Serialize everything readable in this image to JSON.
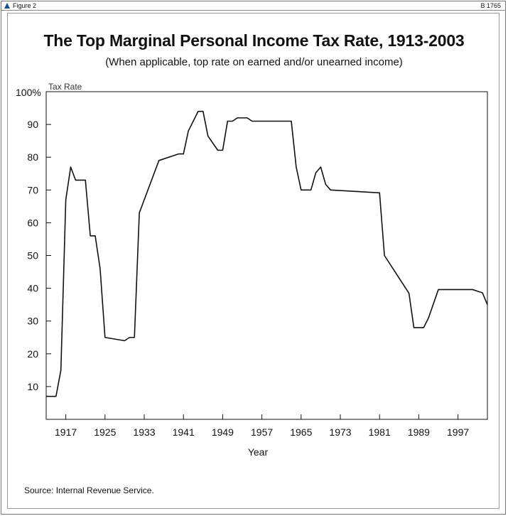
{
  "header": {
    "figure_label": "Figure 2",
    "code": "B 1765"
  },
  "chart_data": {
    "type": "line",
    "title": "The Top Marginal Personal Income Tax Rate, 1913-2003",
    "subtitle": "(When applicable, top rate on earned and/or unearned income)",
    "xlabel": "Year",
    "ylabel": "Tax Rate",
    "y_top_label": "100%",
    "xlim": [
      1913,
      2003
    ],
    "ylim": [
      0,
      100
    ],
    "x_ticks": [
      1917,
      1925,
      1933,
      1941,
      1949,
      1957,
      1965,
      1973,
      1981,
      1989,
      1997
    ],
    "y_ticks": [
      10,
      20,
      30,
      40,
      50,
      60,
      70,
      80,
      90
    ],
    "grid": false,
    "line_color": "#111111",
    "series": [
      {
        "x": [
          1913,
          1915,
          1916,
          1917,
          1918,
          1919,
          1921,
          1922,
          1923,
          1924,
          1925,
          1929,
          1930,
          1931,
          1932,
          1936,
          1940,
          1941,
          1942,
          1944,
          1945,
          1946,
          1948,
          1949,
          1950,
          1951,
          1952,
          1954,
          1955,
          1963,
          1964,
          1965,
          1967,
          1968,
          1969,
          1970,
          1971,
          1981,
          1982,
          1987,
          1988,
          1989,
          1990,
          1991,
          1993,
          2000,
          2001,
          2002,
          2003
        ],
        "y": [
          7,
          7,
          15,
          67,
          77,
          73,
          73,
          56,
          56,
          46,
          25,
          24,
          25,
          25,
          63,
          79,
          81,
          81,
          88,
          94,
          94,
          86.45,
          82.13,
          82.13,
          91,
          91,
          92,
          92,
          91,
          91,
          77,
          70,
          70,
          75.25,
          77,
          71.75,
          70,
          69.13,
          50,
          38.5,
          28,
          28,
          28,
          31,
          39.6,
          39.6,
          39.1,
          38.6,
          35
        ]
      }
    ]
  },
  "source": {
    "label": "Source",
    "text": ": Internal Revenue Service."
  }
}
